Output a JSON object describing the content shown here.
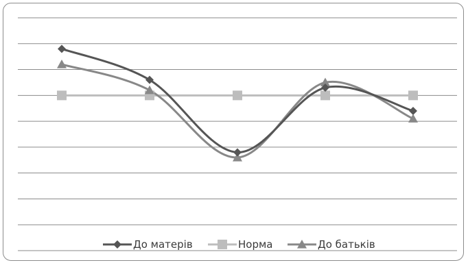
{
  "chart_data": {
    "type": "line",
    "smooth": true,
    "categories": [
      "1",
      "2",
      "3",
      "4",
      "5"
    ],
    "show_category_labels": false,
    "ylim": [
      0,
      9
    ],
    "grid": true,
    "legend_position": "bottom",
    "series": [
      {
        "name": "До матерів",
        "marker": "diamond",
        "color": "#555555",
        "values": [
          7.8,
          6.6,
          3.8,
          6.3,
          5.4
        ]
      },
      {
        "name": "Норма",
        "marker": "square",
        "color": "#bdbdbd",
        "values": [
          6.0,
          6.0,
          6.0,
          6.0,
          6.0
        ]
      },
      {
        "name": "До батьків",
        "marker": "triangle",
        "color": "#888888",
        "values": [
          7.2,
          6.2,
          3.6,
          6.5,
          5.1
        ]
      }
    ]
  }
}
